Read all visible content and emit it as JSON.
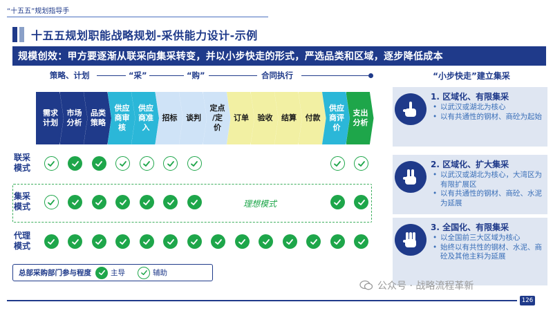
{
  "header": {
    "tag": "“十五五”规划指导手",
    "title": "十五五规划职能战略规划-采供能力设计-示例",
    "banner": "规模创效：甲方要逐渐从联采向集采转变，并以小步快走的形式，严选品类和区域，逐步降低成本"
  },
  "phases": {
    "p1": "策略、计划",
    "p2": "“采”",
    "p3": "“购”",
    "p4": "合同执行"
  },
  "steps": [
    {
      "lines": [
        "需求",
        "计划"
      ],
      "color": "#1f3a8a",
      "text": "#ffffff"
    },
    {
      "lines": [
        "市场",
        "分析"
      ],
      "color": "#1f3a8a",
      "text": "#ffffff"
    },
    {
      "lines": [
        "品类",
        "策略"
      ],
      "color": "#1f3a8a",
      "text": "#ffffff"
    },
    {
      "lines": [
        "供应",
        "商审",
        "核"
      ],
      "color": "#2bb7d8",
      "text": "#ffffff"
    },
    {
      "lines": [
        "供应",
        "商准",
        "入"
      ],
      "color": "#2bb7d8",
      "text": "#ffffff"
    },
    {
      "lines": [
        "招标"
      ],
      "color": "#cfe3f7",
      "text": "#1a1a1a"
    },
    {
      "lines": [
        "谈判"
      ],
      "color": "#cfe3f7",
      "text": "#1a1a1a"
    },
    {
      "lines": [
        "定点",
        "/定",
        "价"
      ],
      "color": "#cfe3f7",
      "text": "#1a1a1a"
    },
    {
      "lines": [
        "订单"
      ],
      "color": "#f2f0a3",
      "text": "#1a1a1a"
    },
    {
      "lines": [
        "验收"
      ],
      "color": "#f2f0a3",
      "text": "#1a1a1a"
    },
    {
      "lines": [
        "结算"
      ],
      "color": "#f2f0a3",
      "text": "#1a1a1a"
    },
    {
      "lines": [
        "付款"
      ],
      "color": "#f2f0a3",
      "text": "#1a1a1a"
    },
    {
      "lines": [
        "供应",
        "商评",
        "价"
      ],
      "color": "#2bb7d8",
      "text": "#ffffff"
    },
    {
      "lines": [
        "支出",
        "分析"
      ],
      "color": "#1ea64a",
      "text": "#ffffff"
    }
  ],
  "rows": [
    {
      "label": [
        "联采",
        "模式"
      ],
      "marks": [
        "aux",
        "main",
        "main",
        "aux",
        "aux",
        "aux",
        "aux",
        "",
        "",
        "",
        "",
        "",
        "aux",
        "aux"
      ]
    },
    {
      "label": [
        "集采",
        "模式"
      ],
      "marks": [
        "aux",
        "main",
        "main",
        "main",
        "main",
        "main",
        "main",
        "",
        "",
        "",
        "",
        "",
        "main",
        "main"
      ]
    },
    {
      "label": [
        "代理",
        "模式"
      ],
      "marks": [
        "main",
        "main",
        "main",
        "main",
        "main",
        "main",
        "main",
        "main",
        "main",
        "main",
        "main",
        "main",
        "main",
        "main"
      ]
    }
  ],
  "ideal_label": "理想模式",
  "legend": {
    "title": "总部采购部门参与程度",
    "main": "主导",
    "aux": "辅助"
  },
  "right": {
    "heading": "“小步快走”建立集采",
    "cards": [
      {
        "title": "1. 区域化、有限集采",
        "fingers": 1,
        "items": [
          "以武汉或湖北为核心",
          "以有共通性的钢材、商砼为起始"
        ]
      },
      {
        "title": "2. 区域化、扩大集采",
        "fingers": 2,
        "items": [
          "以武汉或湖北为核心，大湾区为有限扩展区",
          "以有共通性的钢材、商砼、水泥为延展"
        ]
      },
      {
        "title": "3. 全国化、有限集采",
        "fingers": 3,
        "items": [
          "以全国前三大区域为核心",
          "始终以有共性的钢材、水泥、商砼及其他主料为延展"
        ]
      }
    ]
  },
  "footer": {
    "watermark": "公众号 · 战略流程革新",
    "page": "126"
  },
  "colors": {
    "primary": "#1f3a8a",
    "green": "#1ea64a"
  }
}
